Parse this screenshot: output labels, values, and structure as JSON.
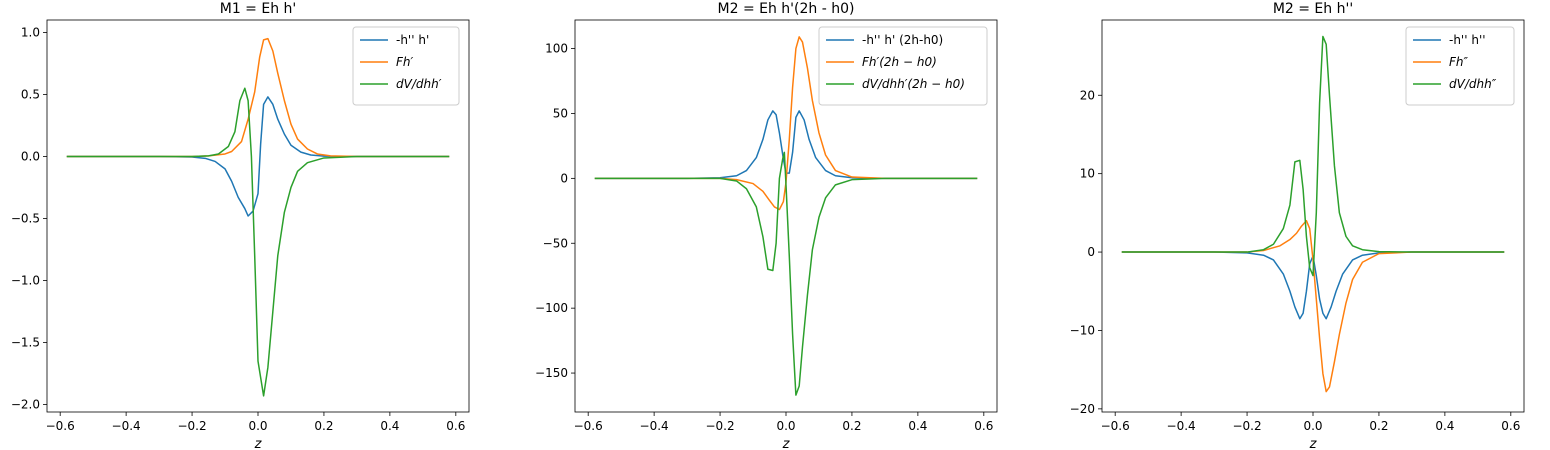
{
  "chart_data": [
    {
      "type": "line",
      "title": "M1 = Eh h'",
      "xlabel": "z",
      "ylabel": "",
      "xlim": [
        -0.64,
        0.64
      ],
      "ylim": [
        -2.06,
        1.1
      ],
      "xticks": [
        -0.6,
        -0.4,
        -0.2,
        0.0,
        0.2,
        0.4,
        0.6
      ],
      "xtick_labels": [
        "−0.6",
        "−0.4",
        "−0.2",
        "0.0",
        "0.2",
        "0.4",
        "0.6"
      ],
      "yticks": [
        -2.0,
        -1.5,
        -1.0,
        -0.5,
        0.0,
        0.5,
        1.0
      ],
      "ytick_labels": [
        "−2.0",
        "−1.5",
        "−1.0",
        "−0.5",
        "0.0",
        "0.5",
        "1.0"
      ],
      "legend_position": "upper right",
      "series": [
        {
          "name": "-h'' h'",
          "legend_math": false,
          "color": "#1f77b4",
          "points": [
            [
              -0.58,
              0
            ],
            [
              -0.3,
              0
            ],
            [
              -0.2,
              -0.004
            ],
            [
              -0.16,
              -0.015
            ],
            [
              -0.13,
              -0.04
            ],
            [
              -0.1,
              -0.1
            ],
            [
              -0.08,
              -0.2
            ],
            [
              -0.06,
              -0.33
            ],
            [
              -0.04,
              -0.42
            ],
            [
              -0.03,
              -0.48
            ],
            [
              -0.015,
              -0.44
            ],
            [
              0,
              -0.3
            ],
            [
              0.008,
              0.1
            ],
            [
              0.017,
              0.42
            ],
            [
              0.03,
              0.48
            ],
            [
              0.045,
              0.42
            ],
            [
              0.06,
              0.3
            ],
            [
              0.08,
              0.18
            ],
            [
              0.1,
              0.09
            ],
            [
              0.13,
              0.035
            ],
            [
              0.16,
              0.012
            ],
            [
              0.2,
              0.003
            ],
            [
              0.3,
              0
            ],
            [
              0.58,
              0
            ]
          ]
        },
        {
          "name": "Fh′",
          "legend_math": true,
          "color": "#ff7f0e",
          "points": [
            [
              -0.58,
              0
            ],
            [
              -0.2,
              0
            ],
            [
              -0.15,
              0.005
            ],
            [
              -0.1,
              0.02
            ],
            [
              -0.08,
              0.04
            ],
            [
              -0.05,
              0.12
            ],
            [
              -0.03,
              0.3
            ],
            [
              -0.01,
              0.52
            ],
            [
              0.005,
              0.8
            ],
            [
              0.017,
              0.94
            ],
            [
              0.03,
              0.95
            ],
            [
              0.045,
              0.85
            ],
            [
              0.06,
              0.67
            ],
            [
              0.08,
              0.45
            ],
            [
              0.1,
              0.26
            ],
            [
              0.12,
              0.14
            ],
            [
              0.15,
              0.06
            ],
            [
              0.18,
              0.02
            ],
            [
              0.22,
              0.005
            ],
            [
              0.3,
              0
            ],
            [
              0.58,
              0
            ]
          ]
        },
        {
          "name": "dV/dhh′",
          "legend_math": true,
          "color": "#2ca02c",
          "points": [
            [
              -0.58,
              0
            ],
            [
              -0.2,
              0
            ],
            [
              -0.15,
              0.005
            ],
            [
              -0.12,
              0.02
            ],
            [
              -0.09,
              0.08
            ],
            [
              -0.07,
              0.2
            ],
            [
              -0.055,
              0.45
            ],
            [
              -0.04,
              0.55
            ],
            [
              -0.03,
              0.45
            ],
            [
              -0.02,
              0
            ],
            [
              -0.01,
              -0.8
            ],
            [
              0,
              -1.65
            ],
            [
              0.017,
              -1.93
            ],
            [
              0.03,
              -1.7
            ],
            [
              0.045,
              -1.25
            ],
            [
              0.06,
              -0.8
            ],
            [
              0.08,
              -0.45
            ],
            [
              0.1,
              -0.25
            ],
            [
              0.12,
              -0.12
            ],
            [
              0.15,
              -0.05
            ],
            [
              0.2,
              -0.012
            ],
            [
              0.3,
              0
            ],
            [
              0.58,
              0
            ]
          ]
        }
      ]
    },
    {
      "type": "line",
      "title": "M2 = Eh h'(2h - h0)",
      "xlabel": "z",
      "ylabel": "",
      "xlim": [
        -0.64,
        0.64
      ],
      "ylim": [
        -180,
        122
      ],
      "xticks": [
        -0.6,
        -0.4,
        -0.2,
        0.0,
        0.2,
        0.4,
        0.6
      ],
      "xtick_labels": [
        "−0.6",
        "−0.4",
        "−0.2",
        "0.0",
        "0.2",
        "0.4",
        "0.6"
      ],
      "yticks": [
        -150,
        -100,
        -50,
        0,
        50,
        100
      ],
      "ytick_labels": [
        "−150",
        "−100",
        "−50",
        "0",
        "50",
        "100"
      ],
      "legend_position": "upper right",
      "series": [
        {
          "name": "-h'' h' (2h-h0)",
          "legend_math": false,
          "color": "#1f77b4",
          "points": [
            [
              -0.58,
              0
            ],
            [
              -0.3,
              0
            ],
            [
              -0.2,
              0.5
            ],
            [
              -0.15,
              2
            ],
            [
              -0.12,
              6
            ],
            [
              -0.09,
              16
            ],
            [
              -0.07,
              30
            ],
            [
              -0.055,
              45
            ],
            [
              -0.04,
              52
            ],
            [
              -0.03,
              49
            ],
            [
              -0.02,
              35
            ],
            [
              -0.008,
              15
            ],
            [
              0,
              4
            ],
            [
              0.01,
              4
            ],
            [
              0.02,
              20
            ],
            [
              0.03,
              47
            ],
            [
              0.04,
              52
            ],
            [
              0.055,
              45
            ],
            [
              0.07,
              30
            ],
            [
              0.09,
              16
            ],
            [
              0.12,
              6
            ],
            [
              0.15,
              2
            ],
            [
              0.2,
              0.5
            ],
            [
              0.3,
              0
            ],
            [
              0.58,
              0
            ]
          ]
        },
        {
          "name": "Fh′(2h − h0)",
          "legend_math": true,
          "color": "#ff7f0e",
          "points": [
            [
              -0.58,
              0
            ],
            [
              -0.2,
              0
            ],
            [
              -0.15,
              -1
            ],
            [
              -0.1,
              -4
            ],
            [
              -0.07,
              -10
            ],
            [
              -0.05,
              -17
            ],
            [
              -0.035,
              -22
            ],
            [
              -0.02,
              -24
            ],
            [
              -0.008,
              -18
            ],
            [
              0,
              -3
            ],
            [
              0.01,
              30
            ],
            [
              0.02,
              70
            ],
            [
              0.03,
              100
            ],
            [
              0.04,
              109
            ],
            [
              0.05,
              105
            ],
            [
              0.065,
              85
            ],
            [
              0.08,
              60
            ],
            [
              0.1,
              35
            ],
            [
              0.12,
              18
            ],
            [
              0.15,
              6
            ],
            [
              0.2,
              1
            ],
            [
              0.3,
              0
            ],
            [
              0.58,
              0
            ]
          ]
        },
        {
          "name": "dV/dhh′(2h − h0)",
          "legend_math": true,
          "color": "#2ca02c",
          "points": [
            [
              -0.58,
              0
            ],
            [
              -0.2,
              0
            ],
            [
              -0.15,
              -2
            ],
            [
              -0.12,
              -8
            ],
            [
              -0.09,
              -22
            ],
            [
              -0.07,
              -45
            ],
            [
              -0.055,
              -70
            ],
            [
              -0.04,
              -71
            ],
            [
              -0.03,
              -50
            ],
            [
              -0.02,
              0
            ],
            [
              -0.01,
              15
            ],
            [
              -0.005,
              20
            ],
            [
              0,
              -5
            ],
            [
              0.01,
              -60
            ],
            [
              0.02,
              -120
            ],
            [
              0.03,
              -167
            ],
            [
              0.04,
              -160
            ],
            [
              0.05,
              -130
            ],
            [
              0.065,
              -90
            ],
            [
              0.08,
              -55
            ],
            [
              0.1,
              -30
            ],
            [
              0.12,
              -15
            ],
            [
              0.15,
              -5
            ],
            [
              0.2,
              -1
            ],
            [
              0.3,
              0
            ],
            [
              0.58,
              0
            ]
          ]
        }
      ]
    },
    {
      "type": "line",
      "title": "M2 = Eh h''",
      "xlabel": "z",
      "ylabel": "",
      "xlim": [
        -0.64,
        0.64
      ],
      "ylim": [
        -20.4,
        29.6
      ],
      "xticks": [
        -0.6,
        -0.4,
        -0.2,
        0.0,
        0.2,
        0.4,
        0.6
      ],
      "xtick_labels": [
        "−0.6",
        "−0.4",
        "−0.2",
        "0.0",
        "0.2",
        "0.4",
        "0.6"
      ],
      "yticks": [
        -20,
        -10,
        0,
        10,
        20
      ],
      "ytick_labels": [
        "−20",
        "−10",
        "0",
        "10",
        "20"
      ],
      "legend_position": "upper right",
      "series": [
        {
          "name": "-h'' h''",
          "legend_math": false,
          "color": "#1f77b4",
          "points": [
            [
              -0.58,
              0
            ],
            [
              -0.3,
              0
            ],
            [
              -0.2,
              -0.1
            ],
            [
              -0.15,
              -0.4
            ],
            [
              -0.12,
              -1
            ],
            [
              -0.09,
              -2.8
            ],
            [
              -0.07,
              -5
            ],
            [
              -0.055,
              -7
            ],
            [
              -0.04,
              -8.5
            ],
            [
              -0.03,
              -7.8
            ],
            [
              -0.02,
              -5
            ],
            [
              -0.01,
              -1.5
            ],
            [
              0,
              -0.5
            ],
            [
              0.01,
              -3
            ],
            [
              0.02,
              -6
            ],
            [
              0.03,
              -7.8
            ],
            [
              0.04,
              -8.5
            ],
            [
              0.055,
              -7
            ],
            [
              0.07,
              -5
            ],
            [
              0.09,
              -2.8
            ],
            [
              0.12,
              -1
            ],
            [
              0.15,
              -0.4
            ],
            [
              0.2,
              -0.1
            ],
            [
              0.3,
              0
            ],
            [
              0.58,
              0
            ]
          ]
        },
        {
          "name": "Fh″",
          "legend_math": true,
          "color": "#ff7f0e",
          "points": [
            [
              -0.58,
              0
            ],
            [
              -0.2,
              0
            ],
            [
              -0.15,
              0.2
            ],
            [
              -0.1,
              0.8
            ],
            [
              -0.07,
              1.6
            ],
            [
              -0.05,
              2.4
            ],
            [
              -0.035,
              3.3
            ],
            [
              -0.02,
              4
            ],
            [
              -0.01,
              3
            ],
            [
              0,
              -1
            ],
            [
              0.01,
              -6
            ],
            [
              0.02,
              -11
            ],
            [
              0.03,
              -15.5
            ],
            [
              0.04,
              -17.8
            ],
            [
              0.05,
              -17.2
            ],
            [
              0.065,
              -14
            ],
            [
              0.08,
              -10.5
            ],
            [
              0.1,
              -6.5
            ],
            [
              0.12,
              -3.5
            ],
            [
              0.15,
              -1.3
            ],
            [
              0.2,
              -0.2
            ],
            [
              0.3,
              0
            ],
            [
              0.58,
              0
            ]
          ]
        },
        {
          "name": "dV/dhh″",
          "legend_math": true,
          "color": "#2ca02c",
          "points": [
            [
              -0.58,
              0
            ],
            [
              -0.2,
              0
            ],
            [
              -0.15,
              0.3
            ],
            [
              -0.12,
              1
            ],
            [
              -0.09,
              3
            ],
            [
              -0.07,
              6
            ],
            [
              -0.055,
              11.5
            ],
            [
              -0.04,
              11.7
            ],
            [
              -0.03,
              8
            ],
            [
              -0.02,
              2
            ],
            [
              -0.01,
              -2
            ],
            [
              0,
              -3
            ],
            [
              0.01,
              5
            ],
            [
              0.02,
              19
            ],
            [
              0.03,
              27.5
            ],
            [
              0.04,
              26.5
            ],
            [
              0.05,
              20
            ],
            [
              0.065,
              11
            ],
            [
              0.08,
              5
            ],
            [
              0.1,
              2
            ],
            [
              0.12,
              0.8
            ],
            [
              0.15,
              0.3
            ],
            [
              0.2,
              0.05
            ],
            [
              0.3,
              0
            ],
            [
              0.58,
              0
            ]
          ]
        }
      ]
    }
  ]
}
